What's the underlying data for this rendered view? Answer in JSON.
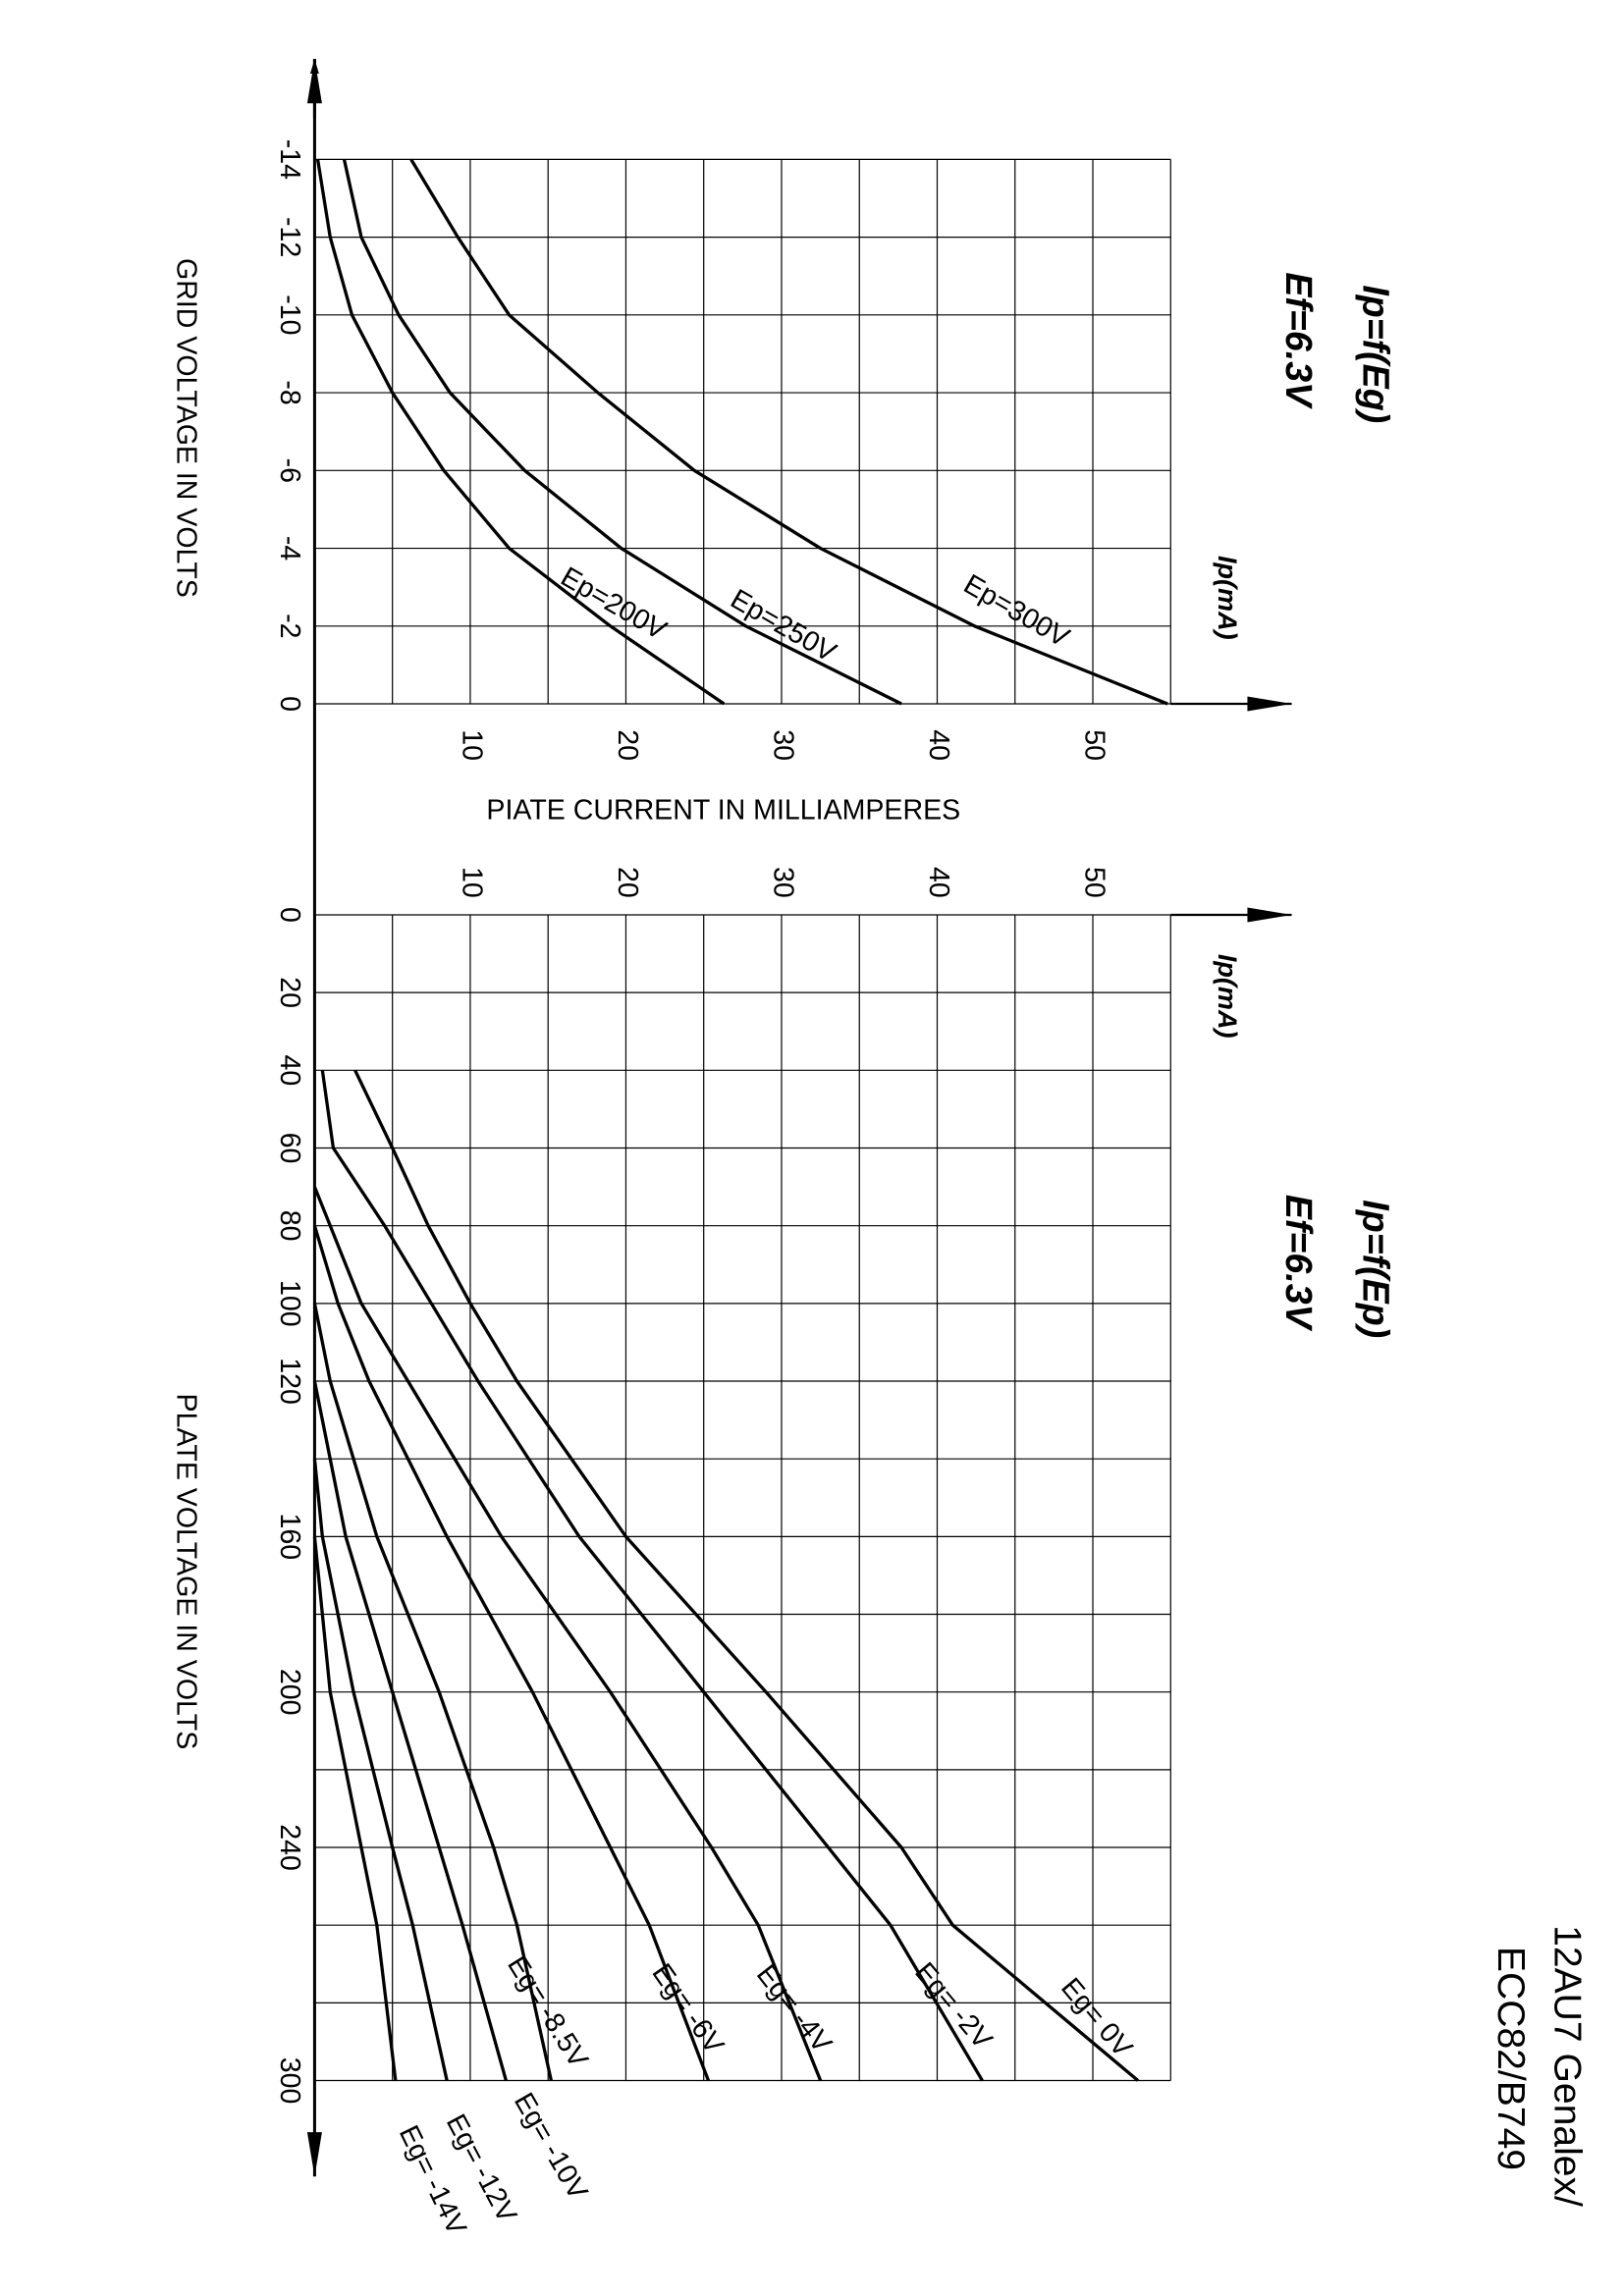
{
  "header": {
    "lines": [
      "12AU7 Genalex/",
      "ECC82/B749"
    ]
  },
  "chart_data": [
    {
      "type": "line",
      "title": "Ip=f(Eg)",
      "subtitle": "Ef=6.3V",
      "value_axis_label": "Ip(mA)",
      "xlabel": "GRID VOLTAGE IN VOLTS",
      "ylabel": "PIATE CURRENT IN MILLIAMPERES",
      "xlim": [
        -14,
        0
      ],
      "xticks": [
        -14,
        -12,
        -10,
        -8,
        -6,
        -4,
        -2,
        0
      ],
      "ylim": [
        0,
        55
      ],
      "yticks": [
        10,
        20,
        30,
        40,
        50
      ],
      "ygrid": [
        5,
        10,
        15,
        20,
        25,
        30,
        35,
        40,
        45,
        50,
        55
      ],
      "grid": true,
      "color": "#000000",
      "series": [
        {
          "name": "Ep=200V",
          "x": [
            -14,
            -12,
            -10,
            -8,
            -6,
            -4,
            -2,
            0
          ],
          "values": [
            0.2,
            1.0,
            2.4,
            5,
            8.3,
            12.5,
            19,
            26.3
          ]
        },
        {
          "name": "Ep=250V",
          "x": [
            -14,
            -12,
            -10,
            -8,
            -6,
            -4,
            -2,
            0
          ],
          "values": [
            1.9,
            3,
            5.4,
            8.7,
            13.5,
            19.7,
            27.7,
            37.7
          ]
        },
        {
          "name": "Ep=300V",
          "x": [
            -14,
            -12,
            -10,
            -8,
            -6,
            -4,
            -2,
            0
          ],
          "values": [
            6.2,
            9.2,
            12.5,
            18.2,
            24.4,
            32.5,
            42.4,
            54.8
          ]
        }
      ]
    },
    {
      "type": "line",
      "title": "Ip=f(Ep)",
      "subtitle": "Ef=6.3V",
      "value_axis_label": "Ip(mA)",
      "xlabel": "PLATE VOLTAGE IN VOLTS",
      "xlim": [
        0,
        300
      ],
      "xticks": [
        0,
        20,
        40,
        60,
        80,
        100,
        120,
        160,
        200,
        240,
        300
      ],
      "xgrid": [
        0,
        20,
        40,
        60,
        80,
        100,
        120,
        140,
        160,
        180,
        200,
        220,
        240,
        260,
        280,
        300
      ],
      "ylim": [
        0,
        55
      ],
      "yticks": [
        10,
        20,
        30,
        40,
        50
      ],
      "ygrid": [
        5,
        10,
        15,
        20,
        25,
        30,
        35,
        40,
        45,
        50,
        55
      ],
      "grid": true,
      "color": "#000000",
      "series": [
        {
          "name": "Eg= 0V",
          "x": [
            40,
            60,
            80,
            100,
            120,
            160,
            200,
            240,
            260,
            300
          ],
          "values": [
            2.6,
            5,
            7.3,
            10,
            13,
            20,
            29,
            37.7,
            41,
            52.9
          ]
        },
        {
          "name": "Eg= -2V",
          "x": [
            40,
            60,
            80,
            100,
            120,
            160,
            200,
            240,
            260,
            300
          ],
          "values": [
            0.5,
            1.2,
            4.5,
            7.5,
            10.5,
            17,
            25,
            33,
            37,
            42.9
          ]
        },
        {
          "name": "Eg= -4V",
          "x": [
            70,
            80,
            100,
            120,
            160,
            200,
            240,
            260,
            300
          ],
          "values": [
            0,
            1,
            3,
            6,
            12,
            19,
            25.5,
            28.5,
            32.5
          ]
        },
        {
          "name": "Eg= -6V",
          "x": [
            80,
            100,
            120,
            160,
            200,
            240,
            260,
            300
          ],
          "values": [
            0,
            1.5,
            3.5,
            8.5,
            14,
            19,
            21.5,
            25.3
          ]
        },
        {
          "name": "Eg= -8.5V",
          "x": [
            100,
            120,
            160,
            200,
            240,
            260,
            300
          ],
          "values": [
            0,
            1,
            4,
            8,
            11.5,
            13,
            15.2
          ]
        },
        {
          "name": "Eg= -10V",
          "x": [
            120,
            160,
            200,
            240,
            260,
            300
          ],
          "values": [
            0,
            2,
            5,
            8,
            9.5,
            12.3
          ]
        },
        {
          "name": "Eg= -12V",
          "x": [
            140,
            160,
            200,
            240,
            260,
            300
          ],
          "values": [
            0,
            0.5,
            2.5,
            5,
            6.3,
            8.5
          ]
        },
        {
          "name": "Eg= -14V",
          "x": [
            160,
            200,
            240,
            260,
            300
          ],
          "values": [
            0,
            1,
            3,
            4,
            5.2
          ]
        }
      ]
    }
  ]
}
